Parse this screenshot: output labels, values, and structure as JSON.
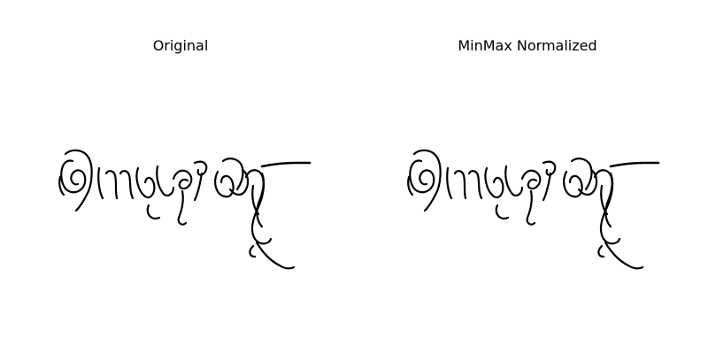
{
  "panels": [
    {
      "title": "Original"
    },
    {
      "title": "MinMax Normalized"
    }
  ],
  "ink_color": "#000000",
  "background_color": "#ffffff"
}
